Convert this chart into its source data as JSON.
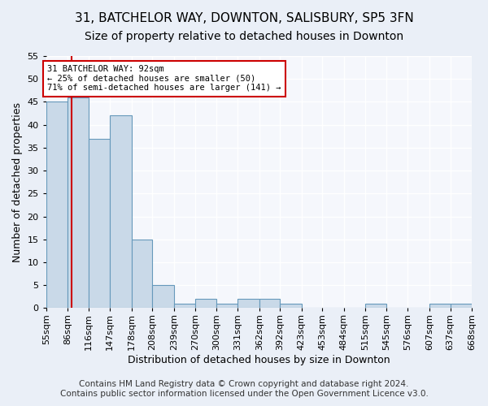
{
  "title_line1": "31, BATCHELOR WAY, DOWNTON, SALISBURY, SP5 3FN",
  "title_line2": "Size of property relative to detached houses in Downton",
  "xlabel": "Distribution of detached houses by size in Downton",
  "ylabel": "Number of detached properties",
  "bin_edges": [
    55,
    86,
    116,
    147,
    178,
    208,
    239,
    270,
    300,
    331,
    362,
    392,
    423,
    453,
    484,
    515,
    545,
    576,
    607,
    637,
    668
  ],
  "bin_labels": [
    "55sqm",
    "86sqm",
    "116sqm",
    "147sqm",
    "178sqm",
    "208sqm",
    "239sqm",
    "270sqm",
    "300sqm",
    "331sqm",
    "362sqm",
    "392sqm",
    "423sqm",
    "453sqm",
    "484sqm",
    "515sqm",
    "545sqm",
    "576sqm",
    "607sqm",
    "637sqm",
    "668sqm"
  ],
  "bar_heights": [
    45,
    46,
    37,
    42,
    15,
    5,
    1,
    2,
    1,
    2,
    2,
    1,
    0,
    0,
    0,
    1,
    0,
    0,
    1,
    1
  ],
  "bar_color": "#c9d9e8",
  "bar_edge_color": "#6699bb",
  "property_line_x": 92,
  "property_line_color": "#cc0000",
  "annotation_text": "31 BATCHELOR WAY: 92sqm\n← 25% of detached houses are smaller (50)\n71% of semi-detached houses are larger (141) →",
  "annotation_box_color": "#ffffff",
  "annotation_box_edge": "#cc0000",
  "ylim": [
    0,
    55
  ],
  "yticks": [
    0,
    5,
    10,
    15,
    20,
    25,
    30,
    35,
    40,
    45,
    50,
    55
  ],
  "footer_line1": "Contains HM Land Registry data © Crown copyright and database right 2024.",
  "footer_line2": "Contains public sector information licensed under the Open Government Licence v3.0.",
  "bg_color": "#eaeff7",
  "plot_bg_color": "#f5f7fc",
  "grid_color": "#ffffff",
  "title_fontsize": 11,
  "subtitle_fontsize": 10,
  "axis_label_fontsize": 9,
  "tick_fontsize": 8,
  "footer_fontsize": 7.5
}
